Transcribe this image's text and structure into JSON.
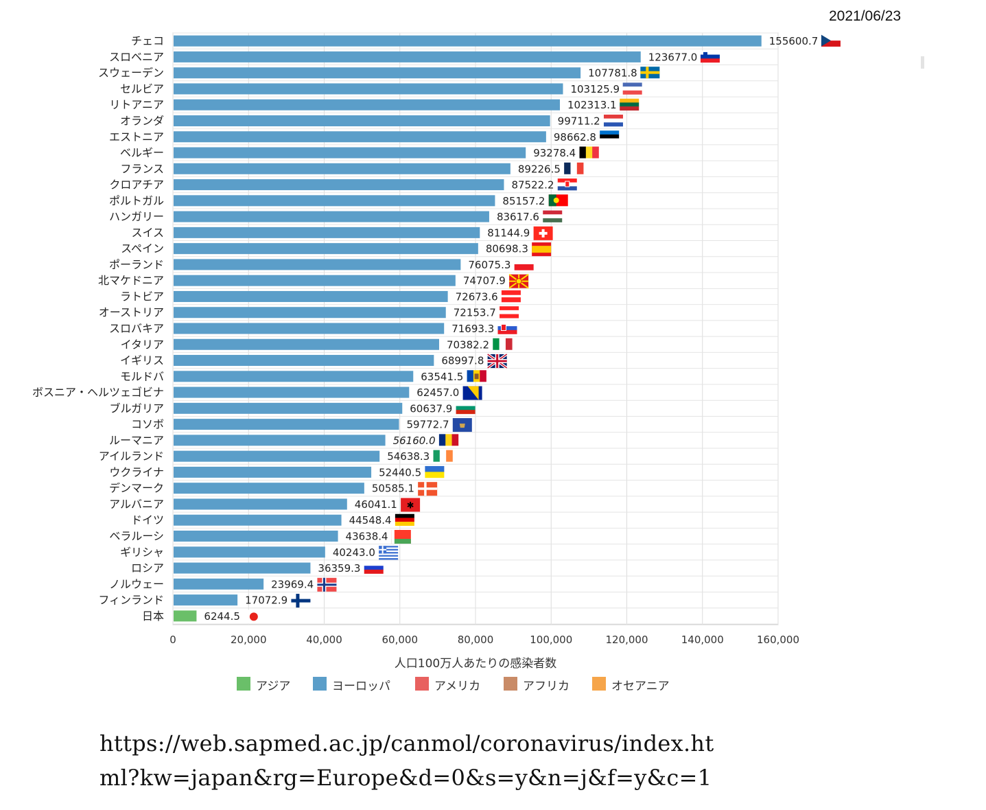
{
  "date": "2021/06/23",
  "url_lines": [
    "https://web.sapmed.ac.jp/canmol/coronavirus/index.ht",
    "ml?kw=japan&rg=Europe&d=0&s=y&n=j&f=y&c=1"
  ],
  "colors": {
    "アジア": "#6abf69",
    "ヨーロッパ": "#5b9ec9",
    "アメリカ": "#e8615f",
    "アフリカ": "#c98b67",
    "オセアニア": "#f6a54a"
  },
  "chart_data": {
    "type": "bar",
    "orientation": "horizontal",
    "xlabel": "人口100万人あたりの感染者数",
    "xlim": [
      0,
      160000
    ],
    "xticks": [
      "0",
      "20,000",
      "40,000",
      "60,000",
      "80,000",
      "100,000",
      "120,000",
      "140,000",
      "160,000"
    ],
    "legend": [
      "アジア",
      "ヨーロッパ",
      "アメリカ",
      "アフリカ",
      "オセアニア"
    ],
    "legend_position": "bottom",
    "grid": true,
    "bars": [
      {
        "name": "チェコ",
        "value": 155600.7,
        "label": "155600.7",
        "region": "ヨーロッパ",
        "flag": "cz"
      },
      {
        "name": "スロベニア",
        "value": 123677.0,
        "label": "123677.0",
        "region": "ヨーロッパ",
        "flag": "si"
      },
      {
        "name": "スウェーデン",
        "value": 107781.8,
        "label": "107781.8",
        "region": "ヨーロッパ",
        "flag": "se"
      },
      {
        "name": "セルビア",
        "value": 103125.9,
        "label": "103125.9",
        "region": "ヨーロッパ",
        "flag": "rs"
      },
      {
        "name": "リトアニア",
        "value": 102313.1,
        "label": "102313.1",
        "region": "ヨーロッパ",
        "flag": "lt"
      },
      {
        "name": "オランダ",
        "value": 99711.2,
        "label": "99711.2",
        "region": "ヨーロッパ",
        "flag": "nl"
      },
      {
        "name": "エストニア",
        "value": 98662.8,
        "label": "98662.8",
        "region": "ヨーロッパ",
        "flag": "ee"
      },
      {
        "name": "ベルギー",
        "value": 93278.4,
        "label": "93278.4",
        "region": "ヨーロッパ",
        "flag": "be"
      },
      {
        "name": "フランス",
        "value": 89226.5,
        "label": "89226.5",
        "region": "ヨーロッパ",
        "flag": "fr"
      },
      {
        "name": "クロアチア",
        "value": 87522.2,
        "label": "87522.2",
        "region": "ヨーロッパ",
        "flag": "hr"
      },
      {
        "name": "ポルトガル",
        "value": 85157.2,
        "label": "85157.2",
        "region": "ヨーロッパ",
        "flag": "pt"
      },
      {
        "name": "ハンガリー",
        "value": 83617.6,
        "label": "83617.6",
        "region": "ヨーロッパ",
        "flag": "hu"
      },
      {
        "name": "スイス",
        "value": 81144.9,
        "label": "81144.9",
        "region": "ヨーロッパ",
        "flag": "ch"
      },
      {
        "name": "スペイン",
        "value": 80698.3,
        "label": "80698.3",
        "region": "ヨーロッパ",
        "flag": "es"
      },
      {
        "name": "ポーランド",
        "value": 76075.3,
        "label": "76075.3",
        "region": "ヨーロッパ",
        "flag": "pl"
      },
      {
        "name": "北マケドニア",
        "value": 74707.9,
        "label": "74707.9",
        "region": "ヨーロッパ",
        "flag": "mk"
      },
      {
        "name": "ラトビア",
        "value": 72673.6,
        "label": "72673.6",
        "region": "ヨーロッパ",
        "flag": "lv"
      },
      {
        "name": "オーストリア",
        "value": 72153.7,
        "label": "72153.7",
        "region": "ヨーロッパ",
        "flag": "at"
      },
      {
        "name": "スロバキア",
        "value": 71693.3,
        "label": "71693.3",
        "region": "ヨーロッパ",
        "flag": "sk"
      },
      {
        "name": "イタリア",
        "value": 70382.2,
        "label": "70382.2",
        "region": "ヨーロッパ",
        "flag": "it"
      },
      {
        "name": "イギリス",
        "value": 68997.8,
        "label": "68997.8",
        "region": "ヨーロッパ",
        "flag": "gb"
      },
      {
        "name": "モルドバ",
        "value": 63541.5,
        "label": "63541.5",
        "region": "ヨーロッパ",
        "flag": "md"
      },
      {
        "name": "ボスニア・ヘルツェゴビナ",
        "value": 62457.0,
        "label": "62457.0",
        "region": "ヨーロッパ",
        "flag": "ba"
      },
      {
        "name": "ブルガリア",
        "value": 60637.9,
        "label": "60637.9",
        "region": "ヨーロッパ",
        "flag": "bg"
      },
      {
        "name": "コソボ",
        "value": 59772.7,
        "label": "59772.7",
        "region": "ヨーロッパ",
        "flag": "xk"
      },
      {
        "name": "ルーマニア",
        "value": 56160.0,
        "label": "56160.0",
        "region": "ヨーロッパ",
        "flag": "ro"
      },
      {
        "name": "アイルランド",
        "value": 54638.3,
        "label": "54638.3",
        "region": "ヨーロッパ",
        "flag": "ie"
      },
      {
        "name": "ウクライナ",
        "value": 52440.5,
        "label": "52440.5",
        "region": "ヨーロッパ",
        "flag": "ua"
      },
      {
        "name": "デンマーク",
        "value": 50585.1,
        "label": "50585.1",
        "region": "ヨーロッパ",
        "flag": "dk"
      },
      {
        "name": "アルバニア",
        "value": 46041.1,
        "label": "46041.1",
        "region": "ヨーロッパ",
        "flag": "al"
      },
      {
        "name": "ドイツ",
        "value": 44548.4,
        "label": "44548.4",
        "region": "ヨーロッパ",
        "flag": "de"
      },
      {
        "name": "ベラルーシ",
        "value": 43638.4,
        "label": "43638.4",
        "region": "ヨーロッパ",
        "flag": "by"
      },
      {
        "name": "ギリシャ",
        "value": 40243.0,
        "label": "40243.0",
        "region": "ヨーロッパ",
        "flag": "gr"
      },
      {
        "name": "ロシア",
        "value": 36359.3,
        "label": "36359.3",
        "region": "ヨーロッパ",
        "flag": "ru"
      },
      {
        "name": "ノルウェー",
        "value": 23969.4,
        "label": "23969.4",
        "region": "ヨーロッパ",
        "flag": "no"
      },
      {
        "name": "フィンランド",
        "value": 17072.9,
        "label": "17072.9",
        "region": "ヨーロッパ",
        "flag": "fi"
      },
      {
        "name": "日本",
        "value": 6244.5,
        "label": "6244.5",
        "region": "アジア",
        "flag": "jp"
      }
    ]
  }
}
